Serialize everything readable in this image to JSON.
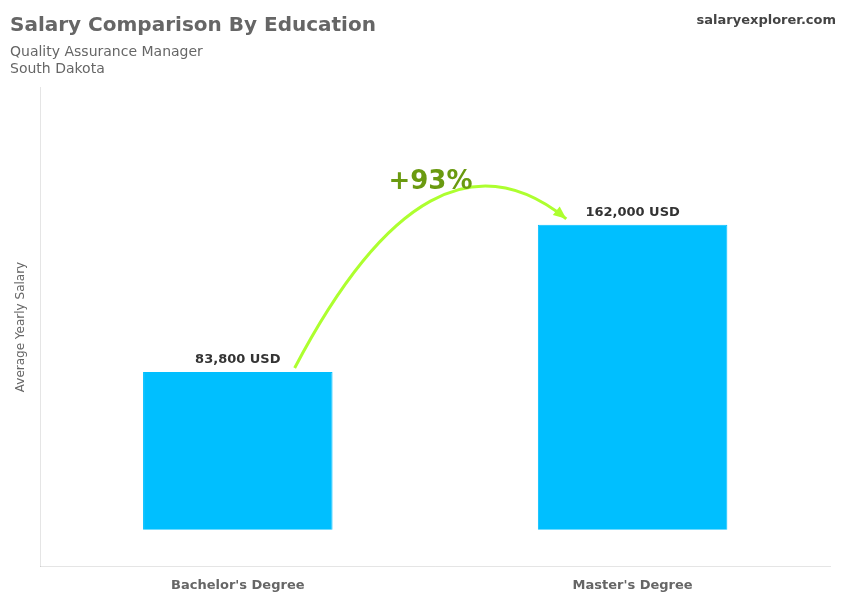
{
  "chart_data": {
    "type": "bar",
    "title": "Salary Comparison By Education",
    "subtitle": [
      "Quality Assurance Manager",
      "South Dakota"
    ],
    "categories": [
      "Bachelor's Degree",
      "Master's Degree"
    ],
    "values": [
      83800,
      162000
    ],
    "value_labels": [
      "83,800 USD",
      "162,000 USD"
    ],
    "data_labels": true,
    "color": "#00BFFF",
    "ylabel": "Average Yearly Salary",
    "ylim": [
      -19440,
      234900
    ],
    "grid": false,
    "tick_labels": "x",
    "annotations": [
      {
        "text": "+93%",
        "from": 0,
        "to": 1,
        "color": "#ADFF2F"
      },
      {
        "text": "salaryexplorer.com"
      }
    ]
  }
}
